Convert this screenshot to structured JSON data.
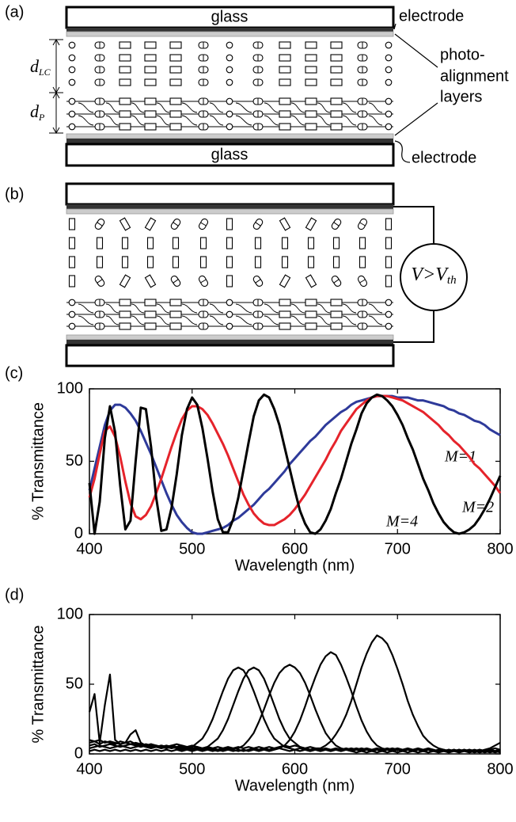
{
  "panels": [
    "(a)",
    "(b)",
    "(c)",
    "(d)"
  ],
  "diagram_a": {
    "top_glass": "glass",
    "bottom_glass": "glass",
    "top_electrode": "electrode",
    "bottom_electrode": "electrode",
    "alignment_label": [
      "photo-",
      "alignment",
      "layers"
    ],
    "d_lc": {
      "symbol": "d",
      "subscript": "LC"
    },
    "d_p": {
      "symbol": "d",
      "subscript": "P"
    }
  },
  "diagram_b": {
    "voltage": {
      "symbol": "V>V",
      "subscript": "th"
    }
  },
  "chart_data": [
    {
      "type": "line",
      "x_label": "Wavelength (nm)",
      "y_label": "% Transmittance",
      "x": [
        400,
        405,
        410,
        415,
        420,
        425,
        430,
        435,
        440,
        445,
        450,
        455,
        460,
        465,
        470,
        475,
        480,
        485,
        490,
        495,
        500,
        505,
        510,
        515,
        520,
        525,
        530,
        535,
        540,
        545,
        550,
        555,
        560,
        565,
        570,
        575,
        580,
        585,
        590,
        595,
        600,
        605,
        610,
        615,
        620,
        625,
        630,
        635,
        640,
        645,
        650,
        655,
        660,
        665,
        670,
        675,
        680,
        685,
        690,
        695,
        700,
        705,
        710,
        715,
        720,
        725,
        730,
        735,
        740,
        745,
        750,
        755,
        760,
        765,
        770,
        775,
        780,
        785,
        790,
        795,
        800
      ],
      "series": [
        {
          "name": "M=1",
          "color": "#2e3a9a",
          "values": [
            30,
            45,
            60,
            75,
            85,
            89,
            89,
            87,
            83,
            78,
            71,
            63,
            55,
            46,
            37,
            28,
            20,
            13,
            8,
            4,
            1,
            0,
            0,
            1,
            2,
            3,
            4,
            6,
            9,
            11,
            14,
            17,
            20,
            24,
            28,
            31,
            35,
            39,
            43,
            48,
            52,
            56,
            60,
            64,
            67,
            71,
            75,
            78,
            81,
            84,
            86,
            89,
            91,
            92,
            93,
            94,
            95,
            95,
            95,
            95,
            94,
            94,
            94,
            93,
            92,
            92,
            91,
            90,
            89,
            88,
            86,
            85,
            83,
            82,
            80,
            78,
            77,
            75,
            72,
            70,
            68
          ]
        },
        {
          "name": "M=2",
          "color": "#e5232b",
          "values": [
            25,
            38,
            55,
            71,
            74,
            67,
            53,
            36,
            21,
            12,
            10,
            13,
            19,
            28,
            38,
            49,
            60,
            70,
            79,
            85,
            88,
            88,
            86,
            82,
            76,
            69,
            62,
            54,
            45,
            36,
            27,
            20,
            14,
            10,
            7,
            6,
            6,
            8,
            10,
            13,
            17,
            22,
            27,
            33,
            39,
            45,
            51,
            58,
            64,
            71,
            76,
            81,
            86,
            89,
            92,
            94,
            95,
            95,
            95,
            94,
            93,
            92,
            90,
            88,
            86,
            84,
            81,
            78,
            75,
            71,
            68,
            64,
            61,
            57,
            53,
            48,
            45,
            41,
            37,
            33,
            28
          ]
        },
        {
          "name": "M=4",
          "color": "#000000",
          "values": [
            35,
            0,
            22,
            66,
            88,
            70,
            33,
            3,
            9,
            50,
            87,
            86,
            60,
            25,
            2,
            3,
            18,
            41,
            68,
            86,
            94,
            89,
            73,
            52,
            29,
            10,
            1,
            1,
            10,
            25,
            44,
            63,
            81,
            92,
            96,
            94,
            86,
            75,
            60,
            45,
            30,
            16,
            7,
            1,
            0,
            3,
            9,
            17,
            28,
            38,
            50,
            62,
            72,
            83,
            90,
            94,
            96,
            95,
            92,
            88,
            82,
            75,
            66,
            58,
            48,
            38,
            30,
            21,
            14,
            8,
            4,
            1,
            0,
            1,
            3,
            6,
            11,
            17,
            24,
            32,
            40
          ]
        }
      ],
      "xlim": [
        400,
        800
      ],
      "ylim": [
        0,
        100
      ],
      "xticks": [
        400,
        500,
        600,
        700,
        800
      ],
      "yticks": [
        0,
        50,
        100
      ]
    },
    {
      "type": "line",
      "x_label": "Wavelength (nm)",
      "y_label": "% Transmittance",
      "x": [
        400,
        405,
        410,
        415,
        420,
        425,
        430,
        435,
        440,
        445,
        450,
        455,
        460,
        465,
        470,
        475,
        480,
        485,
        490,
        495,
        500,
        505,
        510,
        515,
        520,
        525,
        530,
        535,
        540,
        545,
        550,
        555,
        560,
        565,
        570,
        575,
        580,
        585,
        590,
        595,
        600,
        605,
        610,
        615,
        620,
        625,
        630,
        635,
        640,
        645,
        650,
        655,
        660,
        665,
        670,
        675,
        680,
        685,
        690,
        695,
        700,
        705,
        710,
        715,
        720,
        725,
        730,
        735,
        740,
        745,
        750,
        755,
        760,
        765,
        770,
        775,
        780,
        785,
        790,
        795,
        800
      ],
      "series": [
        {
          "color": "#000000",
          "values": [
            30,
            43,
            8,
            35,
            57,
            10,
            7,
            8,
            14,
            17,
            8,
            6,
            7,
            5,
            6,
            5,
            4,
            5,
            4,
            5,
            3,
            4,
            3,
            4,
            3,
            2,
            3,
            4,
            3,
            2,
            3,
            2,
            3,
            2,
            3,
            2,
            3,
            4,
            3,
            2,
            3,
            2,
            3,
            2,
            3,
            2,
            3,
            2,
            3,
            2,
            3,
            2,
            3,
            2,
            3,
            2,
            3,
            2,
            3,
            2,
            3,
            2,
            3,
            2,
            3,
            2,
            3,
            2,
            3,
            2,
            3,
            2,
            3,
            2,
            3,
            2,
            3,
            2,
            3,
            4,
            3
          ]
        },
        {
          "color": "#000000",
          "values": [
            8,
            9,
            7,
            9,
            8,
            7,
            9,
            8,
            7,
            8,
            7,
            6,
            7,
            6,
            5,
            6,
            5,
            4,
            5,
            4,
            5,
            8,
            11,
            17,
            25,
            35,
            45,
            54,
            60,
            62,
            60,
            54,
            45,
            35,
            25,
            17,
            11,
            8,
            5,
            4,
            3,
            4,
            3,
            2,
            3,
            2,
            3,
            2,
            3,
            2,
            3,
            2,
            1,
            2,
            1,
            2,
            1,
            2,
            1,
            2,
            1,
            2,
            1,
            2,
            1,
            2,
            1,
            2,
            1,
            2,
            1,
            2,
            1,
            2,
            1,
            2,
            1,
            2,
            1,
            2,
            1
          ]
        },
        {
          "color": "#000000",
          "values": [
            6,
            7,
            5,
            6,
            7,
            6,
            5,
            6,
            7,
            6,
            5,
            6,
            5,
            6,
            5,
            4,
            5,
            4,
            3,
            4,
            3,
            4,
            3,
            5,
            8,
            11,
            17,
            25,
            35,
            45,
            54,
            60,
            62,
            60,
            54,
            45,
            35,
            25,
            17,
            11,
            8,
            5,
            4,
            3,
            4,
            3,
            4,
            3,
            4,
            3,
            4,
            3,
            4,
            3,
            4,
            3,
            4,
            3,
            4,
            3,
            4,
            3,
            4,
            3,
            4,
            3,
            4,
            3,
            2,
            3,
            2,
            3,
            2,
            3,
            2,
            3,
            2,
            3,
            4,
            6,
            8
          ]
        },
        {
          "color": "#000000",
          "values": [
            10,
            9,
            10,
            8,
            9,
            8,
            7,
            8,
            9,
            7,
            6,
            7,
            6,
            5,
            6,
            5,
            6,
            5,
            6,
            5,
            4,
            5,
            4,
            5,
            4,
            3,
            4,
            3,
            4,
            4,
            6,
            10,
            15,
            23,
            32,
            42,
            51,
            58,
            62,
            64,
            62,
            58,
            51,
            42,
            32,
            23,
            15,
            10,
            6,
            4,
            3,
            4,
            3,
            4,
            3,
            2,
            3,
            2,
            3,
            2,
            3,
            2,
            3,
            2,
            1,
            2,
            1,
            2,
            1,
            2,
            1,
            2,
            1,
            2,
            1,
            2,
            1,
            2,
            3,
            2,
            3
          ]
        },
        {
          "color": "#000000",
          "values": [
            4,
            5,
            6,
            5,
            4,
            5,
            6,
            5,
            4,
            5,
            6,
            5,
            4,
            5,
            4,
            5,
            6,
            7,
            6,
            5,
            6,
            5,
            4,
            5,
            4,
            5,
            4,
            5,
            4,
            5,
            4,
            5,
            4,
            3,
            4,
            3,
            4,
            4,
            6,
            10,
            16,
            24,
            34,
            45,
            55,
            64,
            70,
            73,
            71,
            64,
            55,
            45,
            34,
            24,
            16,
            10,
            6,
            4,
            3,
            4,
            3,
            2,
            3,
            2,
            3,
            2,
            3,
            2,
            3,
            2,
            3,
            2,
            3,
            2,
            3,
            2,
            3,
            2,
            3,
            2,
            3
          ]
        },
        {
          "color": "#000000",
          "values": [
            2,
            3,
            2,
            3,
            2,
            3,
            2,
            3,
            2,
            3,
            2,
            3,
            2,
            3,
            2,
            3,
            2,
            3,
            2,
            3,
            2,
            3,
            2,
            3,
            2,
            3,
            2,
            3,
            2,
            3,
            2,
            3,
            4,
            5,
            4,
            5,
            4,
            5,
            6,
            5,
            6,
            5,
            4,
            5,
            4,
            4,
            6,
            9,
            14,
            20,
            28,
            38,
            50,
            62,
            72,
            80,
            85,
            83,
            79,
            71,
            61,
            50,
            38,
            28,
            20,
            13,
            9,
            6,
            4,
            3,
            2,
            3,
            2,
            3,
            2,
            1,
            2,
            1,
            2,
            1,
            2
          ]
        }
      ],
      "xlim": [
        400,
        800
      ],
      "ylim": [
        0,
        100
      ],
      "xticks": [
        400,
        500,
        600,
        700,
        800
      ],
      "yticks": [
        0,
        50,
        100
      ]
    }
  ]
}
